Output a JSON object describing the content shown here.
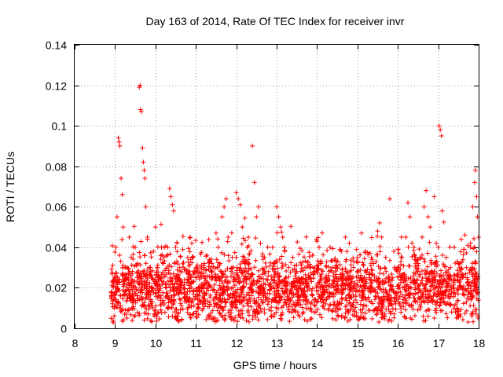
{
  "chart_data": {
    "type": "scatter",
    "title": "Day 163 of 2014, Rate Of TEC Index for receiver invr",
    "xlabel": "GPS time / hours",
    "ylabel": "ROTI / TECUs",
    "xlim": [
      8,
      18
    ],
    "ylim": [
      0,
      0.14
    ],
    "x_ticks": [
      8,
      9,
      10,
      11,
      12,
      13,
      14,
      15,
      16,
      17,
      18
    ],
    "x_tick_labels": [
      "8",
      "9",
      "10",
      "11",
      "12",
      "13",
      "14",
      "15",
      "16",
      "17",
      "18"
    ],
    "y_ticks": [
      0,
      0.02,
      0.04,
      0.06,
      0.08,
      0.1,
      0.12,
      0.14
    ],
    "y_tick_labels": [
      "0",
      "0.02",
      "0.04",
      "0.06",
      "0.08",
      "0.1",
      "0.12",
      "0.14"
    ],
    "grid": true,
    "marker": "+",
    "marker_color": "#ff0000",
    "series": [
      {
        "name": "ROTI",
        "points": [
          [
            8.95,
            0.003
          ],
          [
            8.98,
            0.01
          ],
          [
            9.0,
            0.025
          ],
          [
            9.02,
            0.04
          ],
          [
            9.05,
            0.055
          ],
          [
            9.08,
            0.094
          ],
          [
            9.1,
            0.092
          ],
          [
            9.12,
            0.09
          ],
          [
            9.15,
            0.074
          ],
          [
            9.18,
            0.066
          ],
          [
            9.2,
            0.05
          ],
          [
            9.25,
            0.03
          ],
          [
            9.3,
            0.02
          ],
          [
            9.35,
            0.045
          ],
          [
            9.4,
            0.035
          ],
          [
            9.5,
            0.04
          ],
          [
            9.55,
            0.025
          ],
          [
            9.6,
            0.119
          ],
          [
            9.62,
            0.12
          ],
          [
            9.63,
            0.108
          ],
          [
            9.65,
            0.107
          ],
          [
            9.68,
            0.089
          ],
          [
            9.7,
            0.082
          ],
          [
            9.72,
            0.078
          ],
          [
            9.74,
            0.074
          ],
          [
            9.76,
            0.06
          ],
          [
            9.8,
            0.045
          ],
          [
            9.85,
            0.03
          ],
          [
            9.9,
            0.02
          ],
          [
            9.95,
            0.038
          ],
          [
            10.0,
            0.05
          ],
          [
            10.05,
            0.03
          ],
          [
            10.1,
            0.025
          ],
          [
            10.15,
            0.04
          ],
          [
            10.2,
            0.032
          ],
          [
            10.25,
            0.022
          ],
          [
            10.3,
            0.04
          ],
          [
            10.35,
            0.069
          ],
          [
            10.38,
            0.065
          ],
          [
            10.42,
            0.061
          ],
          [
            10.45,
            0.058
          ],
          [
            10.5,
            0.04
          ],
          [
            10.55,
            0.025
          ],
          [
            10.6,
            0.03
          ],
          [
            10.7,
            0.02
          ],
          [
            10.8,
            0.035
          ],
          [
            10.9,
            0.042
          ],
          [
            11.0,
            0.025
          ],
          [
            11.1,
            0.018
          ],
          [
            11.2,
            0.03
          ],
          [
            11.3,
            0.022
          ],
          [
            11.4,
            0.028
          ],
          [
            11.5,
            0.047
          ],
          [
            11.55,
            0.04
          ],
          [
            11.6,
            0.032
          ],
          [
            11.65,
            0.055
          ],
          [
            11.7,
            0.06
          ],
          [
            11.75,
            0.064
          ],
          [
            11.8,
            0.045
          ],
          [
            11.9,
            0.035
          ],
          [
            12.0,
            0.067
          ],
          [
            12.05,
            0.064
          ],
          [
            12.1,
            0.061
          ],
          [
            12.15,
            0.05
          ],
          [
            12.2,
            0.035
          ],
          [
            12.3,
            0.045
          ],
          [
            12.4,
            0.09
          ],
          [
            12.45,
            0.072
          ],
          [
            12.5,
            0.055
          ],
          [
            12.55,
            0.06
          ],
          [
            12.6,
            0.042
          ],
          [
            12.7,
            0.035
          ],
          [
            12.8,
            0.028
          ],
          [
            12.9,
            0.04
          ],
          [
            13.0,
            0.06
          ],
          [
            13.05,
            0.055
          ],
          [
            13.1,
            0.05
          ],
          [
            13.15,
            0.045
          ],
          [
            13.2,
            0.038
          ],
          [
            13.3,
            0.03
          ],
          [
            13.4,
            0.035
          ],
          [
            13.5,
            0.028
          ],
          [
            13.6,
            0.022
          ],
          [
            13.7,
            0.03
          ],
          [
            13.8,
            0.025
          ],
          [
            13.9,
            0.03
          ],
          [
            14.0,
            0.043
          ],
          [
            14.05,
            0.04
          ],
          [
            14.1,
            0.032
          ],
          [
            14.2,
            0.025
          ],
          [
            14.3,
            0.028
          ],
          [
            14.4,
            0.022
          ],
          [
            14.5,
            0.03
          ],
          [
            14.6,
            0.038
          ],
          [
            14.7,
            0.045
          ],
          [
            14.8,
            0.042
          ],
          [
            14.9,
            0.03
          ],
          [
            15.0,
            0.035
          ],
          [
            15.1,
            0.047
          ],
          [
            15.2,
            0.038
          ],
          [
            15.3,
            0.025
          ],
          [
            15.4,
            0.032
          ],
          [
            15.5,
            0.048
          ],
          [
            15.55,
            0.052
          ],
          [
            15.6,
            0.045
          ],
          [
            15.7,
            0.035
          ],
          [
            15.8,
            0.064
          ],
          [
            15.9,
            0.038
          ],
          [
            16.0,
            0.03
          ],
          [
            16.1,
            0.035
          ],
          [
            16.2,
            0.045
          ],
          [
            16.25,
            0.062
          ],
          [
            16.3,
            0.055
          ],
          [
            16.4,
            0.04
          ],
          [
            16.5,
            0.032
          ],
          [
            16.6,
            0.045
          ],
          [
            16.65,
            0.06
          ],
          [
            16.7,
            0.068
          ],
          [
            16.75,
            0.055
          ],
          [
            16.8,
            0.05
          ],
          [
            16.9,
            0.065
          ],
          [
            16.95,
            0.042
          ],
          [
            17.0,
            0.04
          ],
          [
            17.02,
            0.1
          ],
          [
            17.05,
            0.098
          ],
          [
            17.08,
            0.095
          ],
          [
            17.1,
            0.058
          ],
          [
            17.2,
            0.035
          ],
          [
            17.3,
            0.03
          ],
          [
            17.4,
            0.04
          ],
          [
            17.5,
            0.032
          ],
          [
            17.6,
            0.025
          ],
          [
            17.7,
            0.03
          ],
          [
            17.8,
            0.042
          ],
          [
            17.85,
            0.06
          ],
          [
            17.9,
            0.072
          ],
          [
            17.92,
            0.078
          ],
          [
            17.95,
            0.065
          ],
          [
            17.97,
            0.055
          ],
          [
            18.0,
            0.045
          ]
        ],
        "dense_band": {
          "x_range": [
            8.9,
            18.0
          ],
          "y_center": 0.019,
          "y_spread": 0.012,
          "y_min": 0.003
        }
      }
    ]
  }
}
